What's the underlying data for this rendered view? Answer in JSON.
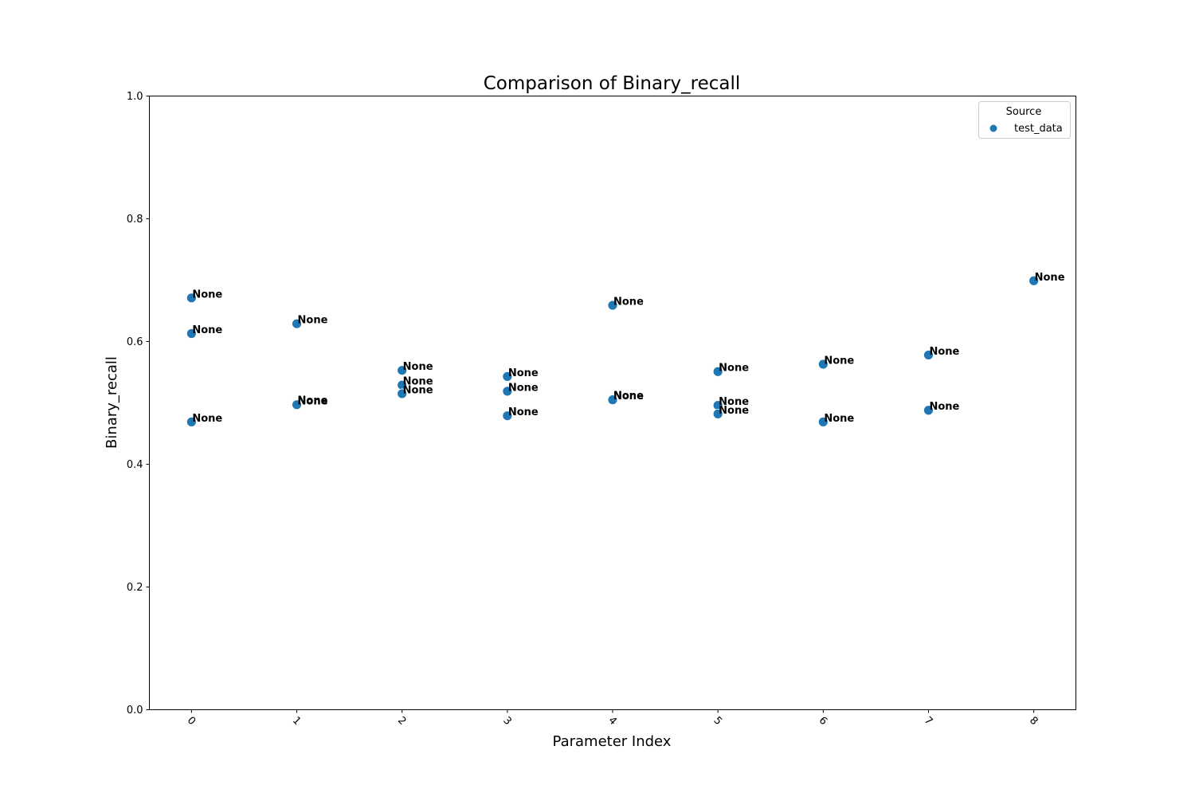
{
  "chart_data": {
    "type": "scatter",
    "title": "Comparison of Binary_recall",
    "xlabel": "Parameter Index",
    "ylabel": "Binary_recall",
    "xlim": [
      -0.4,
      8.4
    ],
    "ylim": [
      0.0,
      1.0
    ],
    "x_ticks": [
      0,
      1,
      2,
      3,
      4,
      5,
      6,
      7,
      8
    ],
    "y_ticks": [
      "0.0",
      "0.2",
      "0.4",
      "0.6",
      "0.8",
      "1.0"
    ],
    "grid": false,
    "legend": {
      "title": "Source",
      "placement": "top-right",
      "entries": [
        "test_data"
      ]
    },
    "series": [
      {
        "name": "test_data",
        "color": "#1f77b4",
        "points": [
          {
            "x": 0,
            "y": 0.671,
            "label": "None"
          },
          {
            "x": 0,
            "y": 0.613,
            "label": "None"
          },
          {
            "x": 0,
            "y": 0.469,
            "label": "None"
          },
          {
            "x": 1,
            "y": 0.629,
            "label": "None"
          },
          {
            "x": 1,
            "y": 0.498,
            "label": "None"
          },
          {
            "x": 1,
            "y": 0.497,
            "label": "None"
          },
          {
            "x": 2,
            "y": 0.553,
            "label": "None"
          },
          {
            "x": 2,
            "y": 0.529,
            "label": "None"
          },
          {
            "x": 2,
            "y": 0.515,
            "label": "None"
          },
          {
            "x": 3,
            "y": 0.543,
            "label": "None"
          },
          {
            "x": 3,
            "y": 0.519,
            "label": "None"
          },
          {
            "x": 3,
            "y": 0.479,
            "label": "None"
          },
          {
            "x": 4,
            "y": 0.659,
            "label": "None"
          },
          {
            "x": 4,
            "y": 0.506,
            "label": "None"
          },
          {
            "x": 4,
            "y": 0.505,
            "label": "None"
          },
          {
            "x": 5,
            "y": 0.551,
            "label": "None"
          },
          {
            "x": 5,
            "y": 0.496,
            "label": "None"
          },
          {
            "x": 5,
            "y": 0.482,
            "label": "None"
          },
          {
            "x": 6,
            "y": 0.563,
            "label": "None"
          },
          {
            "x": 6,
            "y": 0.469,
            "label": "None"
          },
          {
            "x": 7,
            "y": 0.578,
            "label": "None"
          },
          {
            "x": 7,
            "y": 0.488,
            "label": "None"
          },
          {
            "x": 8,
            "y": 0.699,
            "label": "None"
          }
        ]
      }
    ]
  }
}
